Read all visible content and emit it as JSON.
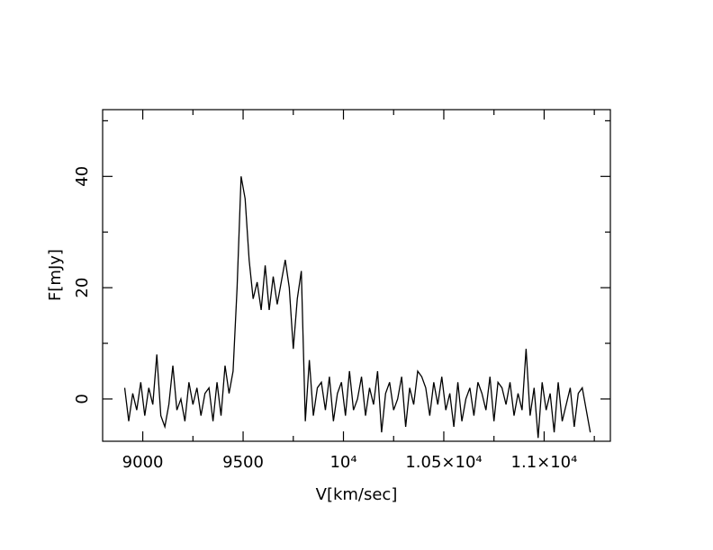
{
  "chart_data": {
    "type": "line",
    "xlabel": "V[km/sec]",
    "ylabel": "F[mJy]",
    "color": "#000000",
    "xlim": [
      8800,
      11330
    ],
    "ylim": [
      -7.6,
      52
    ],
    "xticks": [
      9000,
      9500,
      {
        "value": 10000,
        "label": "10⁴"
      },
      {
        "value": 10500,
        "label": "1.05×10⁴"
      },
      {
        "value": 11000,
        "label": "1.1×10⁴"
      }
    ],
    "xticks_minor": [
      9250,
      9750,
      10250,
      10750,
      11250
    ],
    "yticks": [
      0,
      20,
      40
    ],
    "yticks_minor": [
      10,
      30,
      50
    ],
    "x": [
      8910,
      8930,
      8950,
      8970,
      8990,
      9010,
      9030,
      9050,
      9070,
      9090,
      9110,
      9130,
      9150,
      9170,
      9190,
      9210,
      9230,
      9250,
      9270,
      9290,
      9310,
      9330,
      9350,
      9370,
      9390,
      9410,
      9430,
      9450,
      9470,
      9490,
      9510,
      9530,
      9550,
      9570,
      9590,
      9610,
      9630,
      9650,
      9670,
      9690,
      9710,
      9730,
      9750,
      9770,
      9790,
      9810,
      9830,
      9850,
      9870,
      9890,
      9910,
      9930,
      9950,
      9970,
      9990,
      10010,
      10030,
      10050,
      10070,
      10090,
      10110,
      10130,
      10150,
      10170,
      10190,
      10210,
      10230,
      10250,
      10270,
      10290,
      10310,
      10330,
      10350,
      10370,
      10390,
      10410,
      10430,
      10450,
      10470,
      10490,
      10510,
      10530,
      10550,
      10570,
      10590,
      10610,
      10630,
      10650,
      10670,
      10690,
      10710,
      10730,
      10750,
      10770,
      10790,
      10810,
      10830,
      10850,
      10870,
      10890,
      10910,
      10930,
      10950,
      10970,
      10990,
      11010,
      11030,
      11050,
      11070,
      11090,
      11110,
      11130,
      11150,
      11170,
      11190,
      11210,
      11230
    ],
    "values": [
      2,
      -4,
      1,
      -2,
      3,
      -3,
      2,
      -1,
      8,
      -3,
      -5,
      -1,
      6,
      -2,
      0,
      -4,
      3,
      -1,
      2,
      -3,
      1,
      2,
      -4,
      3,
      -3,
      6,
      1,
      5,
      20,
      40,
      36,
      25,
      18,
      21,
      16,
      24,
      16,
      22,
      17,
      21,
      25,
      20,
      9,
      18,
      23,
      -4,
      7,
      -3,
      2,
      3,
      -2,
      4,
      -4,
      1,
      3,
      -3,
      5,
      -2,
      0,
      4,
      -3,
      2,
      -1,
      5,
      -6,
      1,
      3,
      -2,
      0,
      4,
      -5,
      2,
      -1,
      5,
      4,
      2,
      -3,
      3,
      -1,
      4,
      -2,
      1,
      -5,
      3,
      -4,
      0,
      2,
      -3,
      3,
      1,
      -2,
      4,
      -4,
      3,
      2,
      -1,
      3,
      -3,
      1,
      -2,
      9,
      -3,
      2,
      -7,
      3,
      -2,
      1,
      -6,
      3,
      -4,
      -1,
      2,
      -5,
      1,
      2,
      -2,
      -6
    ]
  }
}
